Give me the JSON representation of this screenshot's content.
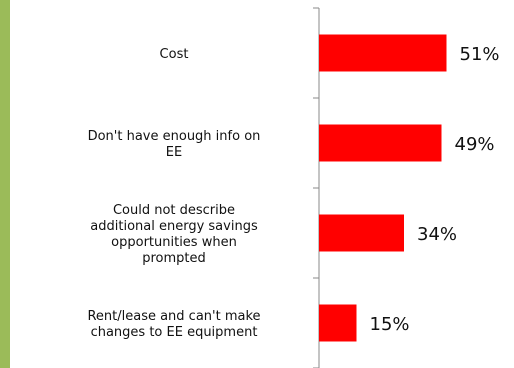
{
  "chart_data": {
    "type": "bar",
    "orientation": "horizontal",
    "categories": [
      "Cost",
      "Don't have enough info on EE",
      "Could not describe additional energy savings opportunities when prompted",
      "Rent/lease and can't make changes to EE equipment"
    ],
    "category_lines": [
      [
        "Cost"
      ],
      [
        "Don't have enough info on",
        "EE"
      ],
      [
        "Could not describe",
        "additional energy savings",
        "opportunities when",
        "prompted"
      ],
      [
        "Rent/lease and can't make",
        "changes to EE equipment"
      ]
    ],
    "values": [
      51,
      49,
      34,
      15
    ],
    "value_labels": [
      "51%",
      "49%",
      "34%",
      "15%"
    ],
    "xlim": [
      0,
      100
    ],
    "grid": false,
    "legend": "none",
    "bar_color": "#ff0000",
    "accent_color": "#9bbb59"
  }
}
